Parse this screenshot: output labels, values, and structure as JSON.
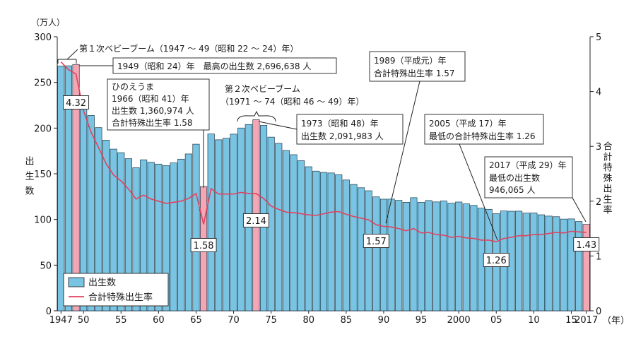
{
  "chart_data": {
    "type": "bar",
    "title": "",
    "y_unit": "（万人）",
    "ylabel": "出生数",
    "y2label": "合計特殊出生率",
    "x_suffix": "（年）",
    "ylim": [
      0,
      300
    ],
    "y2lim": [
      0,
      5
    ],
    "y_ticks": [
      0,
      50,
      100,
      150,
      200,
      250,
      300
    ],
    "y2_ticks": [
      0,
      1,
      2,
      3,
      4,
      5
    ],
    "x_tick_years": [
      1947,
      1950,
      1955,
      1960,
      1965,
      1970,
      1975,
      1980,
      1985,
      1990,
      1995,
      2000,
      2005,
      2010,
      2015,
      2017
    ],
    "x_tick_labels": [
      "1947",
      "50",
      "55",
      "60",
      "65",
      "70",
      "75",
      "80",
      "85",
      "90",
      "95",
      "2000",
      "05",
      "10",
      "15",
      "2017"
    ],
    "years": [
      1947,
      1948,
      1949,
      1950,
      1951,
      1952,
      1953,
      1954,
      1955,
      1956,
      1957,
      1958,
      1959,
      1960,
      1961,
      1962,
      1963,
      1964,
      1965,
      1966,
      1967,
      1968,
      1969,
      1970,
      1971,
      1972,
      1973,
      1974,
      1975,
      1976,
      1977,
      1978,
      1979,
      1980,
      1981,
      1982,
      1983,
      1984,
      1985,
      1986,
      1987,
      1988,
      1989,
      1990,
      1991,
      1992,
      1993,
      1994,
      1995,
      1996,
      1997,
      1998,
      1999,
      2000,
      2001,
      2002,
      2003,
      2004,
      2005,
      2006,
      2007,
      2008,
      2009,
      2010,
      2011,
      2012,
      2013,
      2014,
      2015,
      2016,
      2017
    ],
    "highlight_years": [
      1949,
      1966,
      1973,
      2017
    ],
    "series": [
      {
        "name": "出生数",
        "kind": "bar",
        "color": "#79c4e3",
        "highlight_color": "#f4a6b4",
        "values": [
          267.9,
          268.2,
          269.7,
          233.8,
          213.8,
          200.5,
          186.8,
          177.0,
          173.1,
          166.5,
          156.7,
          165.3,
          162.6,
          160.6,
          158.9,
          161.9,
          166.0,
          171.7,
          182.4,
          136.1,
          193.6,
          187.2,
          188.9,
          193.4,
          200.1,
          203.9,
          209.2,
          203.0,
          190.1,
          183.3,
          175.5,
          170.9,
          164.3,
          157.7,
          152.9,
          151.5,
          150.9,
          149.0,
          143.2,
          138.3,
          134.7,
          131.4,
          124.7,
          122.2,
          122.3,
          120.9,
          118.8,
          123.8,
          118.7,
          120.7,
          119.2,
          120.3,
          117.8,
          119.1,
          117.1,
          115.4,
          112.4,
          111.1,
          106.3,
          109.3,
          109.0,
          109.1,
          107.0,
          107.1,
          105.1,
          103.7,
          103.0,
          100.4,
          100.6,
          97.7,
          94.6
        ]
      },
      {
        "name": "合計特殊出生率",
        "kind": "line",
        "axis": "right",
        "color": "#e0435e",
        "values": [
          4.54,
          4.4,
          4.32,
          3.65,
          3.26,
          2.98,
          2.69,
          2.48,
          2.37,
          2.22,
          2.04,
          2.11,
          2.04,
          2.0,
          1.96,
          1.98,
          2.0,
          2.05,
          2.14,
          1.58,
          2.23,
          2.13,
          2.13,
          2.13,
          2.16,
          2.14,
          2.14,
          2.05,
          1.91,
          1.85,
          1.8,
          1.79,
          1.77,
          1.75,
          1.74,
          1.77,
          1.8,
          1.81,
          1.76,
          1.72,
          1.69,
          1.66,
          1.57,
          1.54,
          1.53,
          1.5,
          1.46,
          1.5,
          1.42,
          1.43,
          1.39,
          1.38,
          1.34,
          1.36,
          1.33,
          1.32,
          1.29,
          1.29,
          1.26,
          1.32,
          1.34,
          1.37,
          1.37,
          1.39,
          1.39,
          1.41,
          1.43,
          1.42,
          1.45,
          1.44,
          1.43
        ]
      }
    ],
    "rate_labels": [
      {
        "year": 1949,
        "text": "4.32"
      },
      {
        "year": 1966,
        "text": "1.58"
      },
      {
        "year": 1973,
        "text": "2.14"
      },
      {
        "year": 1989,
        "text": "1.57"
      },
      {
        "year": 2005,
        "text": "1.26"
      },
      {
        "year": 2017,
        "text": "1.43"
      }
    ],
    "annotations": {
      "boom1": "第１次ベビーブーム（1947 ～ 49（昭和 22 ～ 24）年）",
      "peak1949": "1949（昭和 24）年　最高の出生数 2,696,638 人",
      "hinoeuma": [
        "ひのえうま",
        "1966（昭和 41）年",
        "出生数 1,360,974 人",
        "合計特殊出生率 1.58"
      ],
      "boom2": [
        "第２次ベビーブーム",
        "（1971 ～ 74（昭和 46 ～ 49）年）"
      ],
      "y1973": [
        "1973（昭和 48）年",
        "出生数 2,091,983 人"
      ],
      "y1989": [
        "1989（平成元）年",
        "合計特殊出生率 1.57"
      ],
      "y2005": [
        "2005（平成 17）年",
        "最低の合計特殊出生率 1.26"
      ],
      "y2017": [
        "2017（平成 29）年",
        "最低の出生数",
        "946,065 人"
      ]
    },
    "legend": {
      "position": "bottom-left",
      "items": [
        {
          "label": "出生数",
          "kind": "bar"
        },
        {
          "label": "合計特殊出生率",
          "kind": "line"
        }
      ]
    }
  }
}
